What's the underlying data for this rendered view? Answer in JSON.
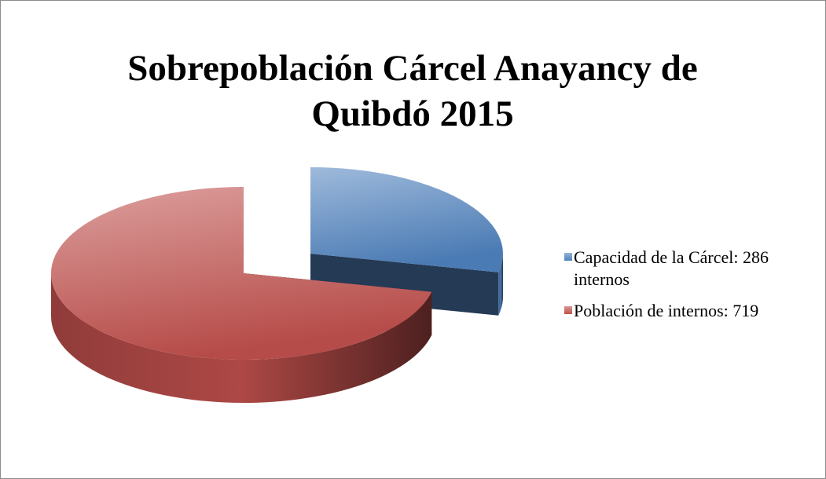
{
  "chart_data": {
    "type": "pie",
    "title": "Sobrepoblación Cárcel Anayancy de Quibdó 2015",
    "categories": [
      "Capacidad de la Cárcel: 286 internos",
      "Población de internos: 719"
    ],
    "values": [
      286,
      719
    ],
    "colors": [
      "#4f81bd",
      "#c0504d"
    ],
    "legend": "right"
  }
}
